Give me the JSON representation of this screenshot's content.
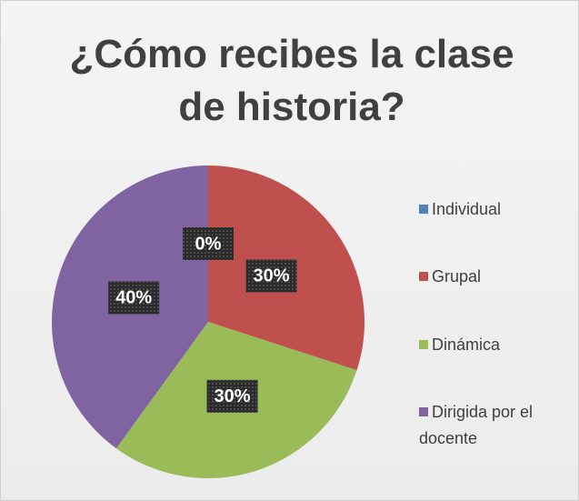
{
  "chart_data": {
    "type": "pie",
    "title": "¿Cómo recibes la clase de historia?",
    "categories": [
      "Individual",
      "Grupal",
      "Dinámica",
      "Dirigida por el docente"
    ],
    "values": [
      0,
      30,
      30,
      40
    ],
    "value_labels": [
      "0%",
      "30%",
      "30%",
      "40%"
    ],
    "colors": [
      "#4f81bd",
      "#c0504d",
      "#9bbb59",
      "#8064a2"
    ],
    "legend": "right"
  }
}
